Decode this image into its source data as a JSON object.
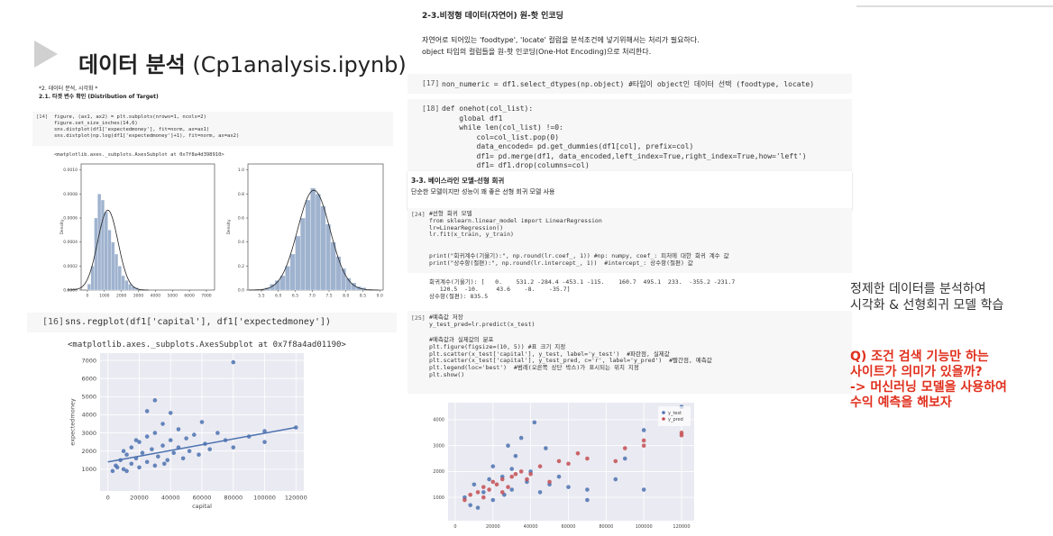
{
  "header": {
    "title_bold": "데이터 분석",
    "title_rest": "(Cp1analysis.ipynb)"
  },
  "left": {
    "section": "*2. 데이터 분석, 시각화 *",
    "subsection": "2.1. 타겟 변수 확인 (Distribution of Target)",
    "cell14": {
      "prompt": "[14]",
      "code": [
        "figure, (ax1, ax2) = plt.subplots(nrows=1, ncols=2)",
        "figure.set_size_inches(14,6)",
        "sns.distplot(df1['expectedmoney'], fit=norm, ax=ax1)",
        "sns.distplot(np.log(df1['expectedmoney']+1), fit=norm, ax=ax2)"
      ]
    },
    "out14": "<matplotlib.axes._subplots.AxesSubplot at 0x7f8a4d398910>",
    "hist1": {
      "ylabel": "Density",
      "xlim": [
        -370,
        7480
      ],
      "ylim": [
        0,
        0.00105
      ],
      "xticks": [
        0,
        1000,
        2000,
        3000,
        4000,
        5000,
        6000,
        7000
      ],
      "yticks": [
        {
          "value": 0,
          "label": "0.0000"
        },
        {
          "value": 0.0002,
          "label": "0.0002"
        },
        {
          "value": 0.0004,
          "label": "0.0004"
        },
        {
          "value": 0.0006,
          "label": "0.0006"
        },
        {
          "value": 0.0008,
          "label": "0.0008"
        },
        {
          "value": 0.001,
          "label": "0.0010"
        }
      ],
      "bins": [
        0,
        200,
        400,
        600,
        800,
        1000,
        1200,
        1400,
        1600,
        1800,
        2000,
        2200,
        2400,
        2600,
        2800,
        3000
      ],
      "counts": [
        5e-05,
        0.0002,
        0.0006,
        0.0008,
        0.00075,
        0.00065,
        0.0005,
        0.0004,
        0.0003,
        0.0002,
        0.00012,
        8e-05,
        5e-05,
        3e-05,
        2e-05
      ],
      "bar_color": "#9fb3cf",
      "fit": {
        "mean": 1200,
        "std": 600
      },
      "grid": false
    },
    "hist2": {
      "ylabel": "Density",
      "xlim": [
        5.1,
        9.1
      ],
      "ylim": [
        0,
        1.05
      ],
      "xticks": [
        5.5,
        {
          "value": 6,
          "label": "6.0"
        },
        6.5,
        {
          "value": 7,
          "label": "7.0"
        },
        7.5,
        {
          "value": 8,
          "label": "8.0"
        },
        8.5,
        {
          "value": 9,
          "label": "9.0"
        }
      ],
      "yticks": [
        {
          "value": 0,
          "label": "0.0"
        },
        0.2,
        0.4,
        0.6,
        0.8,
        {
          "value": 1,
          "label": "1.0"
        }
      ],
      "bins": [
        5.6,
        5.75,
        5.9,
        6.05,
        6.2,
        6.35,
        6.5,
        6.65,
        6.8,
        6.95,
        7.1,
        7.25,
        7.4,
        7.55,
        7.7,
        7.85,
        8.0,
        8.15,
        8.3,
        8.45,
        8.6
      ],
      "counts": [
        0.02,
        0.05,
        0.08,
        0.12,
        0.2,
        0.3,
        0.45,
        0.6,
        0.75,
        0.85,
        0.8,
        0.7,
        0.55,
        0.4,
        0.28,
        0.18,
        0.1,
        0.06,
        0.03,
        0.02
      ],
      "bar_color": "#9fb3cf",
      "fit": {
        "mean": 7.05,
        "std": 0.48
      },
      "grid": false
    },
    "cell16": {
      "prompt": "[16]",
      "code": [
        "sns.regplot(df1['capital'], df1['expectedmoney'])"
      ]
    },
    "out16": "<matplotlib.axes._subplots.AxesSubplot at 0x7f8a4ad01190>",
    "scatter1": {
      "xlabel": "capital",
      "ylabel": "expectedmoney",
      "xlim": [
        -5000,
        125000
      ],
      "ylim": [
        -200,
        7400
      ],
      "xticks": [
        0,
        20000,
        40000,
        60000,
        80000,
        100000,
        120000
      ],
      "yticks": [
        1000,
        2000,
        3000,
        4000,
        5000,
        6000,
        7000
      ],
      "grid": true,
      "series": [
        {
          "color": "#4c72b0",
          "points": [
            [
              5000,
              1200
            ],
            [
              8000,
              1500
            ],
            [
              10000,
              1000
            ],
            [
              12000,
              1800
            ],
            [
              15000,
              1300
            ],
            [
              15000,
              2200
            ],
            [
              18000,
              1600
            ],
            [
              20000,
              1100
            ],
            [
              20000,
              2500
            ],
            [
              22000,
              1900
            ],
            [
              25000,
              1400
            ],
            [
              25000,
              2800
            ],
            [
              28000,
              2100
            ],
            [
              30000,
              1200
            ],
            [
              30000,
              3000
            ],
            [
              32000,
              1700
            ],
            [
              35000,
              2300
            ],
            [
              35000,
              3500
            ],
            [
              38000,
              1500
            ],
            [
              40000,
              2600
            ],
            [
              40000,
              4100
            ],
            [
              42000,
              1900
            ],
            [
              45000,
              2200
            ],
            [
              45000,
              3200
            ],
            [
              48000,
              1600
            ],
            [
              50000,
              2700
            ],
            [
              52000,
              2000
            ],
            [
              55000,
              2900
            ],
            [
              58000,
              1800
            ],
            [
              60000,
              3600
            ],
            [
              62000,
              2400
            ],
            [
              65000,
              2100
            ],
            [
              70000,
              3000
            ],
            [
              75000,
              2600
            ],
            [
              80000,
              6900
            ],
            [
              80000,
              2200
            ],
            [
              90000,
              2800
            ],
            [
              100000,
              3100
            ],
            [
              100000,
              2500
            ],
            [
              120000,
              3300
            ],
            [
              3000,
              900
            ],
            [
              6000,
              1100
            ],
            [
              12000,
              900
            ],
            [
              25000,
              4200
            ],
            [
              30000,
              4800
            ],
            [
              10000,
              2000
            ],
            [
              18000,
              2600
            ],
            [
              36000,
              1300
            ]
          ]
        }
      ],
      "line": [
        [
          0,
          1400
        ],
        [
          120000,
          3300
        ]
      ],
      "line_color": "#4c72b0"
    }
  },
  "middle": {
    "heading": "2-3.비정형 데이터(자연어) 원-핫 인코딩",
    "para": [
      "자연어로 되어있는 'foodtype', 'locate' 컬럼을 분석조건에 넣기위해서는 처리가 필요하다.",
      "object 타입의 컬럼들을 원-핫 인코딩(One-Hot Encoding)으로 처리한다."
    ],
    "cell17": {
      "prompt": "[17]",
      "code": [
        "non_numeric = df1.select_dtypes(np.object) #타입이 object인 데이터 선택 (foodtype, locate)"
      ]
    },
    "cell18": {
      "prompt": "[18]",
      "code": [
        "def onehot(col_list):",
        "    global df1",
        "    while len(col_list) !=0:",
        "        col=col_list.pop(0)",
        "        data_encoded= pd.get_dummies(df1[col], prefix=col)",
        "        df1= pd.merge(df1, data_encoded,left_index=True,right_index=True,how='left')",
        "        df1= df1.drop(columns=col)"
      ]
    },
    "heading2": "3-3. 베이스라인 모델-선형 회귀",
    "para2": "단순한 모델이지만 성능이 꽤 좋은 선형 회귀 모델 사용",
    "cell24": {
      "prompt": "[24]",
      "code_a": [
        "#선형 회귀 모델",
        "from sklearn.linear_model import LinearRegression",
        "lr=LinearRegression()",
        "lr.fit(x_train, y_train)"
      ],
      "code_b": [
        "print(\"회귀계수(기울기):\", np.round(lr.coef_, 1)) #np: numpy, coef_: 피처에 대한 회귀 계수 값",
        "print(\"상수항(절편):\", np.round(lr.intercept_, 1))  #intercept_: 상수항(절편) 값"
      ]
    },
    "out24": [
      "회귀계수(기울기): [   0.    531.2 -284.4 -453.1 -115.    160.7  495.1  233.  -355.2 -231.7",
      "   120.5  -10.     43.6    -8.    -35.7]",
      "상수항(절편): 835.5"
    ],
    "cell25": {
      "prompt": "[25]",
      "code_a": [
        "#예측값 저장",
        "y_test_pred=lr.predict(x_test)"
      ],
      "code_b": [
        "#예측값과 실제값의 분포",
        "plt.figure(figsize=(10, 5)) #표 크기 지정",
        "plt.scatter(x_test['capital'], y_test, label='y_test')  #파란점, 실제값",
        "plt.scatter(x_test['capital'], y_test_pred, c='r', label='y_pred')  #빨간점, 예측값",
        "plt.legend(loc='best')  #범례(오른쪽 상단 박스)가 표시되는 위치 지정",
        "plt.show()"
      ]
    },
    "scatter2": {
      "xlim": [
        -3800,
        126700
      ],
      "ylim": [
        100,
        4660
      ],
      "xticks": [
        0,
        20000,
        40000,
        60000,
        80000,
        100000,
        120000
      ],
      "yticks": [
        1000,
        2000,
        3000,
        4000
      ],
      "grid": true,
      "legend": "upper right",
      "series": [
        {
          "name": "y_test",
          "color": "#4c72b0",
          "points": [
            [
              5000,
              1000
            ],
            [
              10000,
              1500
            ],
            [
              15000,
              1200
            ],
            [
              20000,
              2200
            ],
            [
              20000,
              900
            ],
            [
              25000,
              1800
            ],
            [
              28000,
              3000
            ],
            [
              30000,
              1300
            ],
            [
              32000,
              2600
            ],
            [
              35000,
              3300
            ],
            [
              38000,
              1600
            ],
            [
              40000,
              2000
            ],
            [
              45000,
              1200
            ],
            [
              48000,
              2900
            ],
            [
              50000,
              1500
            ],
            [
              55000,
              1800
            ],
            [
              60000,
              1400
            ],
            [
              70000,
              900
            ],
            [
              70000,
              1300
            ],
            [
              85000,
              1700
            ],
            [
              90000,
              2500
            ],
            [
              100000,
              3600
            ],
            [
              100000,
              1300
            ],
            [
              120000,
              4500
            ],
            [
              8000,
              700
            ],
            [
              18000,
              1700
            ],
            [
              26000,
              1100
            ],
            [
              42000,
              3900
            ],
            [
              12000,
              600
            ],
            [
              30000,
              2100
            ]
          ]
        },
        {
          "name": "y_pred",
          "color": "#c44e52",
          "points": [
            [
              5000,
              900
            ],
            [
              8000,
              1100
            ],
            [
              12000,
              1200
            ],
            [
              15000,
              1400
            ],
            [
              18000,
              1300
            ],
            [
              20000,
              1600
            ],
            [
              22000,
              1500
            ],
            [
              25000,
              1700
            ],
            [
              28000,
              1400
            ],
            [
              30000,
              1800
            ],
            [
              32000,
              1900
            ],
            [
              35000,
              2000
            ],
            [
              38000,
              1700
            ],
            [
              40000,
              1900
            ],
            [
              45000,
              2200
            ],
            [
              50000,
              1600
            ],
            [
              55000,
              2400
            ],
            [
              60000,
              2300
            ],
            [
              65000,
              2700
            ],
            [
              70000,
              2500
            ],
            [
              85000,
              2400
            ],
            [
              90000,
              2900
            ],
            [
              100000,
              3000
            ],
            [
              100000,
              3200
            ],
            [
              120000,
              3500
            ],
            [
              120000,
              3400
            ],
            [
              25000,
              1200
            ],
            [
              15000,
              1000
            ]
          ]
        }
      ]
    }
  },
  "notes": {
    "summary": [
      "정제한 데이터를 분석하여",
      "시각화 & 선형회귀 모델 학습"
    ],
    "question": [
      "Q) 조건 검색 기능만 하는",
      "사이트가 의미가 있을까?",
      "-> 머신러닝 모델을 사용하여",
      "수익 예측을 해보자"
    ]
  }
}
